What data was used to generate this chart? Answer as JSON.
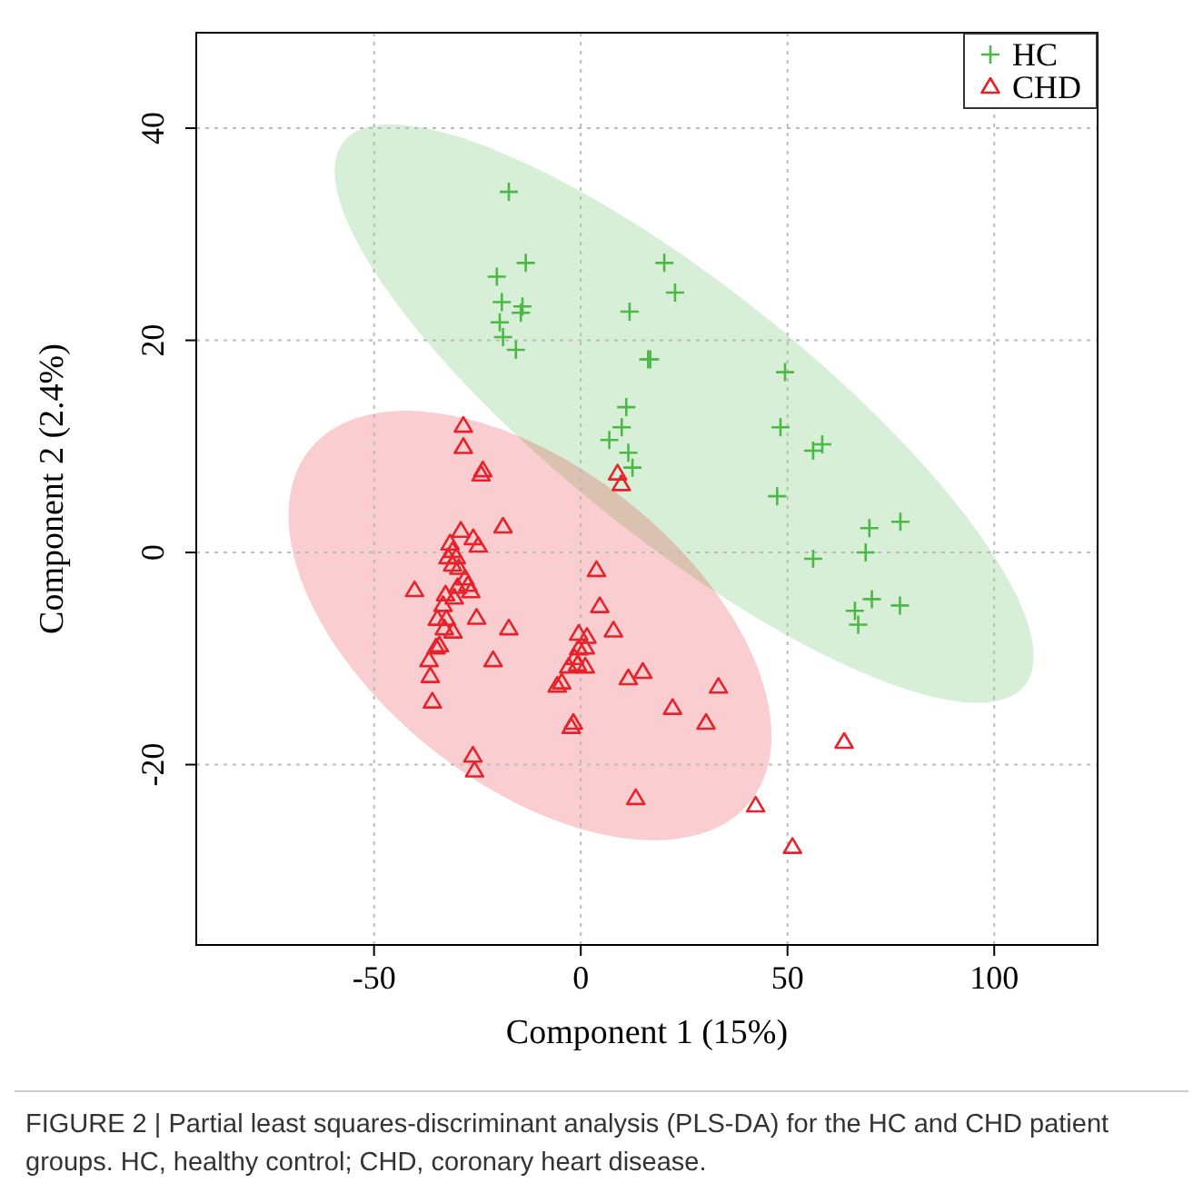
{
  "chart_data": {
    "type": "scatter",
    "xlabel": "Component 1 (15%)",
    "ylabel": "Component 2 (2.4%)",
    "xlim": [
      -93,
      125
    ],
    "ylim": [
      -37,
      49
    ],
    "xticks": [
      -50,
      0,
      50,
      100
    ],
    "yticks": [
      -20,
      0,
      20,
      40
    ],
    "grid": true,
    "legend": "top right",
    "annotations": [
      "FIGURE 2 | Partial least squares-discriminant analysis (PLS-DA) for the HC and CHD patient groups. HC, healthy control; CHD, coronary heart disease."
    ],
    "series": [
      {
        "name": "HC",
        "color": "#4cb848",
        "marker": "cross",
        "x": [
          -17.4,
          -13.3,
          -20.3,
          -19.1,
          -14.1,
          -14.5,
          -19.6,
          -18.8,
          -15.7,
          20.2,
          22.8,
          11.8,
          16.3,
          16.8,
          11.0,
          9.9,
          6.9,
          11.5,
          12.5,
          49.4,
          48.3,
          56.2,
          58.4,
          47.5,
          69.8,
          77.3,
          68.9,
          56.2,
          70.4,
          77.2,
          66.3,
          67.1
        ],
        "values": [
          34.0,
          27.3,
          26.0,
          23.6,
          23.2,
          22.6,
          21.7,
          20.3,
          19.1,
          27.3,
          24.5,
          22.7,
          18.2,
          18.2,
          13.7,
          11.8,
          10.6,
          9.4,
          8.0,
          17.0,
          11.8,
          9.6,
          10.2,
          5.3,
          2.3,
          2.9,
          0,
          -0.6,
          -4.4,
          -5.0,
          -5.5,
          -6.8
        ]
      },
      {
        "name": "CHD",
        "color": "#e8222a",
        "marker": "triangle",
        "x": [
          -28.4,
          -28.4,
          -23.7,
          -24.1,
          8.9,
          9.8,
          -18.8,
          -29.0,
          -26.0,
          -24.8,
          -31.6,
          -31.0,
          -32.1,
          -30.1,
          -31.0,
          -29.5,
          -40.2,
          -28.0,
          -27.3,
          -26.6,
          -29.8,
          -30.6,
          -32.7,
          -33.3,
          -34.7,
          -32.5,
          -33.0,
          -30.9,
          -25.2,
          -17.4,
          -34.2,
          -35.0,
          -36.7,
          -36.4,
          -35.9,
          -21.2,
          -26.1,
          -25.7,
          3.8,
          4.6,
          7.9,
          -0.5,
          1.5,
          1.1,
          -0.5,
          -1.5,
          -2.9,
          -0.8,
          1.1,
          -4.6,
          -5.7,
          11.5,
          15.0,
          33.3,
          22.2,
          30.3,
          -1.8,
          -2.3,
          13.3,
          42.3,
          51.2,
          63.7
        ],
        "values": [
          11.9,
          9.9,
          7.7,
          7.3,
          7.4,
          6.4,
          2.4,
          2.0,
          1.3,
          0.6,
          0.8,
          0.1,
          -0.5,
          -0.5,
          -1.2,
          -1.5,
          -3.6,
          -2.5,
          -3.1,
          -3.7,
          -3.3,
          -4.3,
          -4.0,
          -5.0,
          -6.3,
          -6.3,
          -7.2,
          -7.5,
          -6.2,
          -7.2,
          -8.8,
          -9.0,
          -10.2,
          -11.7,
          -14.1,
          -10.2,
          -19.2,
          -20.6,
          -1.7,
          -5.1,
          -7.4,
          -7.7,
          -8.0,
          -9.0,
          -9.1,
          -10.0,
          -10.8,
          -10.6,
          -10.8,
          -12.3,
          -12.6,
          -11.9,
          -11.3,
          -12.7,
          -14.7,
          -16.1,
          -16.1,
          -16.5,
          -23.2,
          -23.9,
          -27.8,
          -17.9
        ]
      }
    ]
  }
}
